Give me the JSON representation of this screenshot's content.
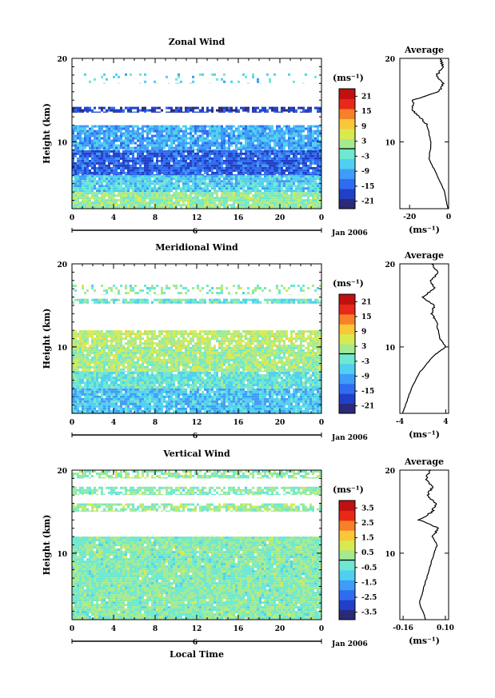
{
  "figure": {
    "xlabel_bottom": "Local Time",
    "date_label": "Jan 2006",
    "day_label": "6"
  },
  "colorbar_unit": "(ms⁻¹)",
  "colors": {
    "scale": [
      "#2a2a78",
      "#2040c8",
      "#2f6cf0",
      "#3f9cf8",
      "#4fd0f0",
      "#6ee8d0",
      "#a4ea90",
      "#d8ea50",
      "#f8c838",
      "#f88028",
      "#e82818",
      "#c01010"
    ]
  },
  "chart_data": [
    {
      "type": "heatmap",
      "title": "Zonal Wind",
      "ylabel": "Height (km)",
      "x_ticks": [
        "0",
        "4",
        "8",
        "12",
        "16",
        "20",
        "0"
      ],
      "y_ticks": [
        "10",
        "20"
      ],
      "xlim": [
        0,
        24
      ],
      "ylim": [
        2,
        20
      ],
      "colorbar_ticks": [
        "21",
        "15",
        "9",
        "3",
        "-3",
        "-9",
        "-15",
        "-21"
      ],
      "colorbar_range": [
        -24,
        24
      ],
      "layers": [
        {
          "zmin": 2,
          "zmax": 4,
          "value": 1,
          "coverage": 0.95
        },
        {
          "zmin": 4,
          "zmax": 6,
          "value": -6,
          "coverage": 0.95
        },
        {
          "zmin": 6,
          "zmax": 9,
          "value": -15,
          "coverage": 0.95
        },
        {
          "zmin": 9,
          "zmax": 12,
          "value": -9,
          "coverage": 0.9
        },
        {
          "zmin": 13.5,
          "zmax": 14.2,
          "value": -19,
          "coverage": 0.75
        },
        {
          "zmin": 17,
          "zmax": 18.2,
          "value": -5,
          "coverage": 0.1
        }
      ],
      "avg_profile": {
        "title": "Average",
        "xlabel": "(ms⁻¹)",
        "x_ticks": [
          "-20",
          "0"
        ],
        "xlim": [
          -25,
          0
        ],
        "y_ticks": [
          "10",
          "20"
        ],
        "points": [
          [
            -0.5,
            2
          ],
          [
            -2,
            4
          ],
          [
            -6,
            6
          ],
          [
            -10,
            8
          ],
          [
            -9,
            10
          ],
          [
            -11,
            12
          ],
          [
            -15,
            13
          ],
          [
            -19,
            14
          ],
          [
            -18,
            15
          ],
          [
            -5,
            16
          ],
          [
            -3,
            17
          ],
          [
            -6,
            18
          ],
          [
            -3,
            19
          ],
          [
            -4,
            20
          ]
        ]
      }
    },
    {
      "type": "heatmap",
      "title": "Meridional Wind",
      "ylabel": "Height (km)",
      "x_ticks": [
        "0",
        "4",
        "8",
        "12",
        "16",
        "20",
        "0"
      ],
      "y_ticks": [
        "10",
        "20"
      ],
      "xlim": [
        0,
        24
      ],
      "ylim": [
        2,
        20
      ],
      "colorbar_ticks": [
        "21",
        "15",
        "9",
        "3",
        "-3",
        "-9",
        "-15",
        "-21"
      ],
      "colorbar_range": [
        -24,
        24
      ],
      "layers": [
        {
          "zmin": 2,
          "zmax": 5,
          "value": -7,
          "coverage": 0.95
        },
        {
          "zmin": 5,
          "zmax": 7,
          "value": -3,
          "coverage": 0.95
        },
        {
          "zmin": 7,
          "zmax": 10,
          "value": 2,
          "coverage": 0.95
        },
        {
          "zmin": 10,
          "zmax": 12,
          "value": 4,
          "coverage": 0.85
        },
        {
          "zmin": 15.2,
          "zmax": 15.8,
          "value": -3,
          "coverage": 0.8
        },
        {
          "zmin": 16.3,
          "zmax": 17.5,
          "value": 0,
          "coverage": 0.25
        }
      ],
      "avg_profile": {
        "title": "Average",
        "xlabel": "(ms⁻¹)",
        "x_ticks": [
          "-4",
          "4"
        ],
        "xlim": [
          -4,
          4.5
        ],
        "y_ticks": [
          "10",
          "20"
        ],
        "points": [
          [
            -3.5,
            2
          ],
          [
            -3,
            3
          ],
          [
            -2,
            5
          ],
          [
            -0.5,
            7
          ],
          [
            2,
            9
          ],
          [
            4,
            10
          ],
          [
            3,
            11
          ],
          [
            2.5,
            13
          ],
          [
            1.5,
            14
          ],
          [
            2,
            15
          ],
          [
            0,
            16
          ],
          [
            2,
            17
          ],
          [
            1.5,
            18
          ],
          [
            2.8,
            19
          ],
          [
            1.5,
            20
          ]
        ]
      }
    },
    {
      "type": "heatmap",
      "title": "Vertical Wind",
      "ylabel": "Height (km)",
      "x_ticks": [
        "0",
        "4",
        "8",
        "12",
        "16",
        "20",
        "0"
      ],
      "y_ticks": [
        "10",
        "20"
      ],
      "xlim": [
        0,
        24
      ],
      "ylim": [
        2,
        20
      ],
      "colorbar_ticks": [
        "3.5",
        "2.5",
        "1.5",
        "0.5",
        "-0.5",
        "-1.5",
        "-2.5",
        "-3.5"
      ],
      "colorbar_range": [
        -4,
        4
      ],
      "layers": [
        {
          "zmin": 2,
          "zmax": 12,
          "value": 0,
          "coverage": 0.98
        },
        {
          "zmin": 15,
          "zmax": 16,
          "value": 0.2,
          "coverage": 0.75
        },
        {
          "zmin": 17,
          "zmax": 18,
          "value": 0,
          "coverage": 0.7
        },
        {
          "zmin": 19,
          "zmax": 20,
          "value": 0.1,
          "coverage": 0.65
        }
      ],
      "avg_profile": {
        "title": "Average",
        "xlabel": "(ms⁻¹)",
        "x_ticks": [
          "-0.16",
          "0.10"
        ],
        "xlim": [
          -0.18,
          0.12
        ],
        "y_ticks": [
          "10",
          "20"
        ],
        "points": [
          [
            -0.02,
            2
          ],
          [
            -0.06,
            4
          ],
          [
            -0.03,
            6
          ],
          [
            0.0,
            8
          ],
          [
            0.03,
            10
          ],
          [
            0.05,
            11
          ],
          [
            0.02,
            12
          ],
          [
            0.06,
            13
          ],
          [
            -0.06,
            14
          ],
          [
            0.02,
            15
          ],
          [
            0.04,
            16
          ],
          [
            -0.01,
            17
          ],
          [
            0.02,
            18
          ],
          [
            -0.02,
            19
          ],
          [
            0.01,
            20
          ]
        ]
      }
    }
  ]
}
